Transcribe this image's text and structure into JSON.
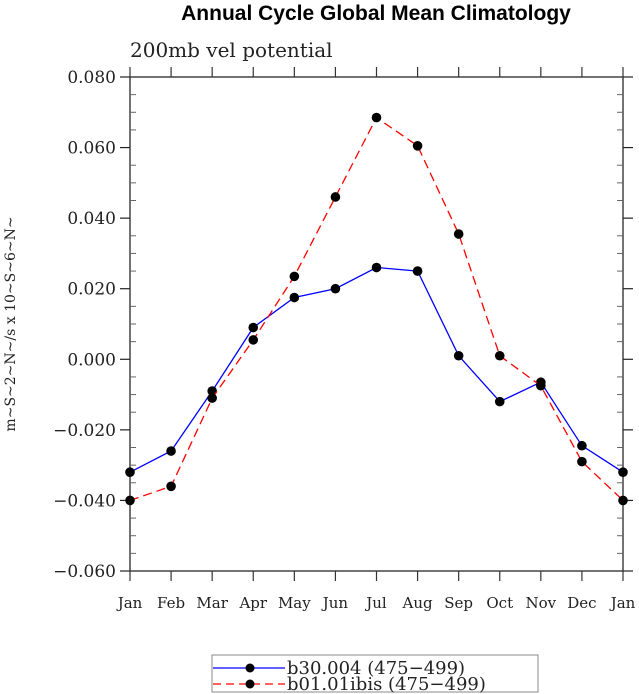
{
  "chart_data": {
    "type": "line",
    "title": "Annual Cycle Global Mean Climatology",
    "subtitle": "200mb vel potential",
    "xlabel": "",
    "ylabel": "m~S~2~N~/s x 10~S~6~N~",
    "categories": [
      "Jan",
      "Feb",
      "Mar",
      "Apr",
      "May",
      "Jun",
      "Jul",
      "Aug",
      "Sep",
      "Oct",
      "Nov",
      "Dec",
      "Jan"
    ],
    "ylim": [
      -0.06,
      0.08
    ],
    "yticks": [
      0.08,
      0.06,
      0.04,
      0.02,
      0.0,
      -0.02,
      -0.04,
      -0.06
    ],
    "ytick_labels": [
      "0.080",
      "0.060",
      "0.040",
      "0.020",
      "0.000",
      "−0.020",
      "−0.040",
      "−0.060"
    ],
    "grid": false,
    "legend_position": "bottom-center",
    "series": [
      {
        "name": "b30.004 (475−499)",
        "color": "#0000ff",
        "line_style": "solid",
        "marker": "filled-circle",
        "values": [
          -0.032,
          -0.026,
          -0.009,
          0.009,
          0.0175,
          0.02,
          0.026,
          0.025,
          0.001,
          -0.012,
          -0.0065,
          -0.0245,
          -0.032
        ]
      },
      {
        "name": "b01.01ibis (475−499)",
        "color": "#ff0000",
        "line_style": "dashed",
        "marker": "filled-circle",
        "values": [
          -0.04,
          -0.036,
          -0.011,
          0.0055,
          0.0235,
          0.046,
          0.0685,
          0.0605,
          0.0355,
          0.001,
          -0.0075,
          -0.029,
          -0.04
        ]
      }
    ]
  }
}
